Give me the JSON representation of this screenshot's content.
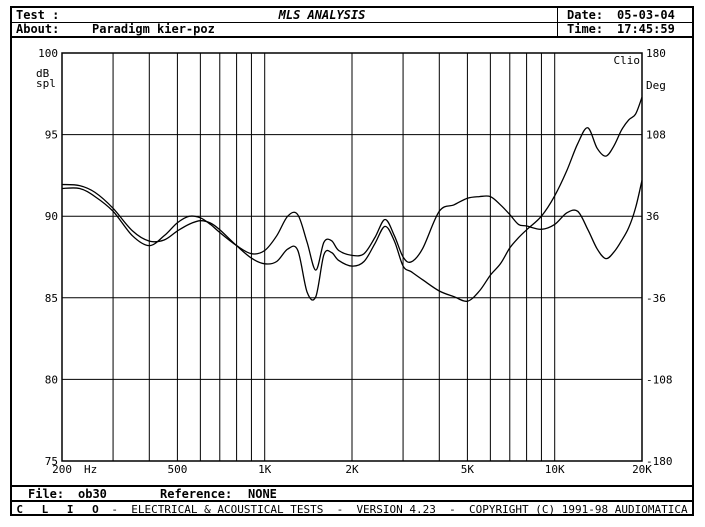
{
  "header": {
    "test_label": "Test :",
    "test_value": "",
    "title": "MLS ANALYSIS",
    "date_label": "Date:",
    "date_value": "05-03-04",
    "about_label": "About:",
    "about_value": "Paradigm kier-poz",
    "time_label": "Time:",
    "time_value": "17:45:59"
  },
  "footer": {
    "file_label": "File:",
    "file_value": "ob30",
    "reference_label": "Reference:",
    "reference_value": "NONE"
  },
  "copyright": {
    "brand": "C L I O",
    "text": " -  ELECTRICAL & ACOUSTICAL TESTS  -  VERSION 4.23  -  COPYRIGHT (C) 1991-98 AUDIOMATICA"
  },
  "chart_data": {
    "type": "line",
    "xlabel": "Hz",
    "ylabel": "dB spl",
    "y2label": "Deg",
    "corner_label": "Clio",
    "x_scale": "log",
    "xlim": [
      200,
      20000
    ],
    "ylim": [
      75,
      100
    ],
    "y2lim": [
      -180,
      180
    ],
    "grid": true,
    "x_tick_labels": [
      {
        "value": 200,
        "label": "200"
      },
      {
        "value": 500,
        "label": "500"
      },
      {
        "value": 1000,
        "label": "1K"
      },
      {
        "value": 2000,
        "label": "2K"
      },
      {
        "value": 5000,
        "label": "5K"
      },
      {
        "value": 10000,
        "label": "10K"
      },
      {
        "value": 20000,
        "label": "20K"
      }
    ],
    "y_ticks": [
      100,
      95,
      90,
      85,
      80,
      75
    ],
    "y2_ticks": [
      180,
      108,
      36,
      -36,
      -108,
      -180
    ],
    "series": [
      {
        "axis": "left",
        "x": [
          200,
          230,
          260,
          300,
          350,
          400,
          450,
          500,
          550,
          600,
          650,
          700,
          800,
          900,
          1000,
          1100,
          1200,
          1300,
          1400,
          1500,
          1600,
          1700,
          1800,
          2000,
          2200,
          2400,
          2600,
          2800,
          3000,
          3200,
          3500,
          4000,
          4500,
          5000,
          5500,
          6000,
          6500,
          7000,
          7500,
          8000,
          9000,
          10000,
          11000,
          12000,
          13000,
          14000,
          15000,
          16000,
          17000,
          18000,
          19000,
          20000
        ],
        "values": [
          91.7,
          91.7,
          91.2,
          90.3,
          88.8,
          88.2,
          88.8,
          89.6,
          90.0,
          89.9,
          89.5,
          89.0,
          88.2,
          87.7,
          87.9,
          88.8,
          90.0,
          90.1,
          88.4,
          86.7,
          88.4,
          88.5,
          87.9,
          87.6,
          87.7,
          88.7,
          89.8,
          88.8,
          87.5,
          87.2,
          88.0,
          90.3,
          90.7,
          91.1,
          91.2,
          91.2,
          90.7,
          90.1,
          89.5,
          89.4,
          89.2,
          89.5,
          90.2,
          90.3,
          89.2,
          88.0,
          87.4,
          87.8,
          88.5,
          89.3,
          90.5,
          92.2
        ]
      },
      {
        "axis": "right",
        "x": [
          200,
          230,
          260,
          300,
          350,
          400,
          450,
          500,
          550,
          600,
          650,
          700,
          800,
          900,
          1000,
          1100,
          1200,
          1300,
          1400,
          1500,
          1600,
          1700,
          1800,
          2000,
          2200,
          2400,
          2600,
          2800,
          3000,
          3200,
          3500,
          4000,
          4500,
          5000,
          5500,
          6000,
          6500,
          7000,
          7500,
          8000,
          9000,
          10000,
          11000,
          12000,
          13000,
          14000,
          15000,
          16000,
          17000,
          18000,
          19000,
          20000
        ],
        "values": [
          64,
          63,
          57,
          43,
          23,
          14,
          15,
          23,
          29,
          32,
          30,
          24,
          10,
          -1,
          -6,
          -4,
          7,
          6,
          -31,
          -35,
          2,
          4,
          -3,
          -8,
          -4,
          12,
          27,
          14,
          -8,
          -13,
          -20,
          -30,
          -35,
          -39,
          -30,
          -16,
          -6,
          8,
          17,
          24,
          36,
          54,
          76,
          100,
          114,
          96,
          89,
          98,
          112,
          121,
          126,
          141
        ]
      }
    ]
  }
}
